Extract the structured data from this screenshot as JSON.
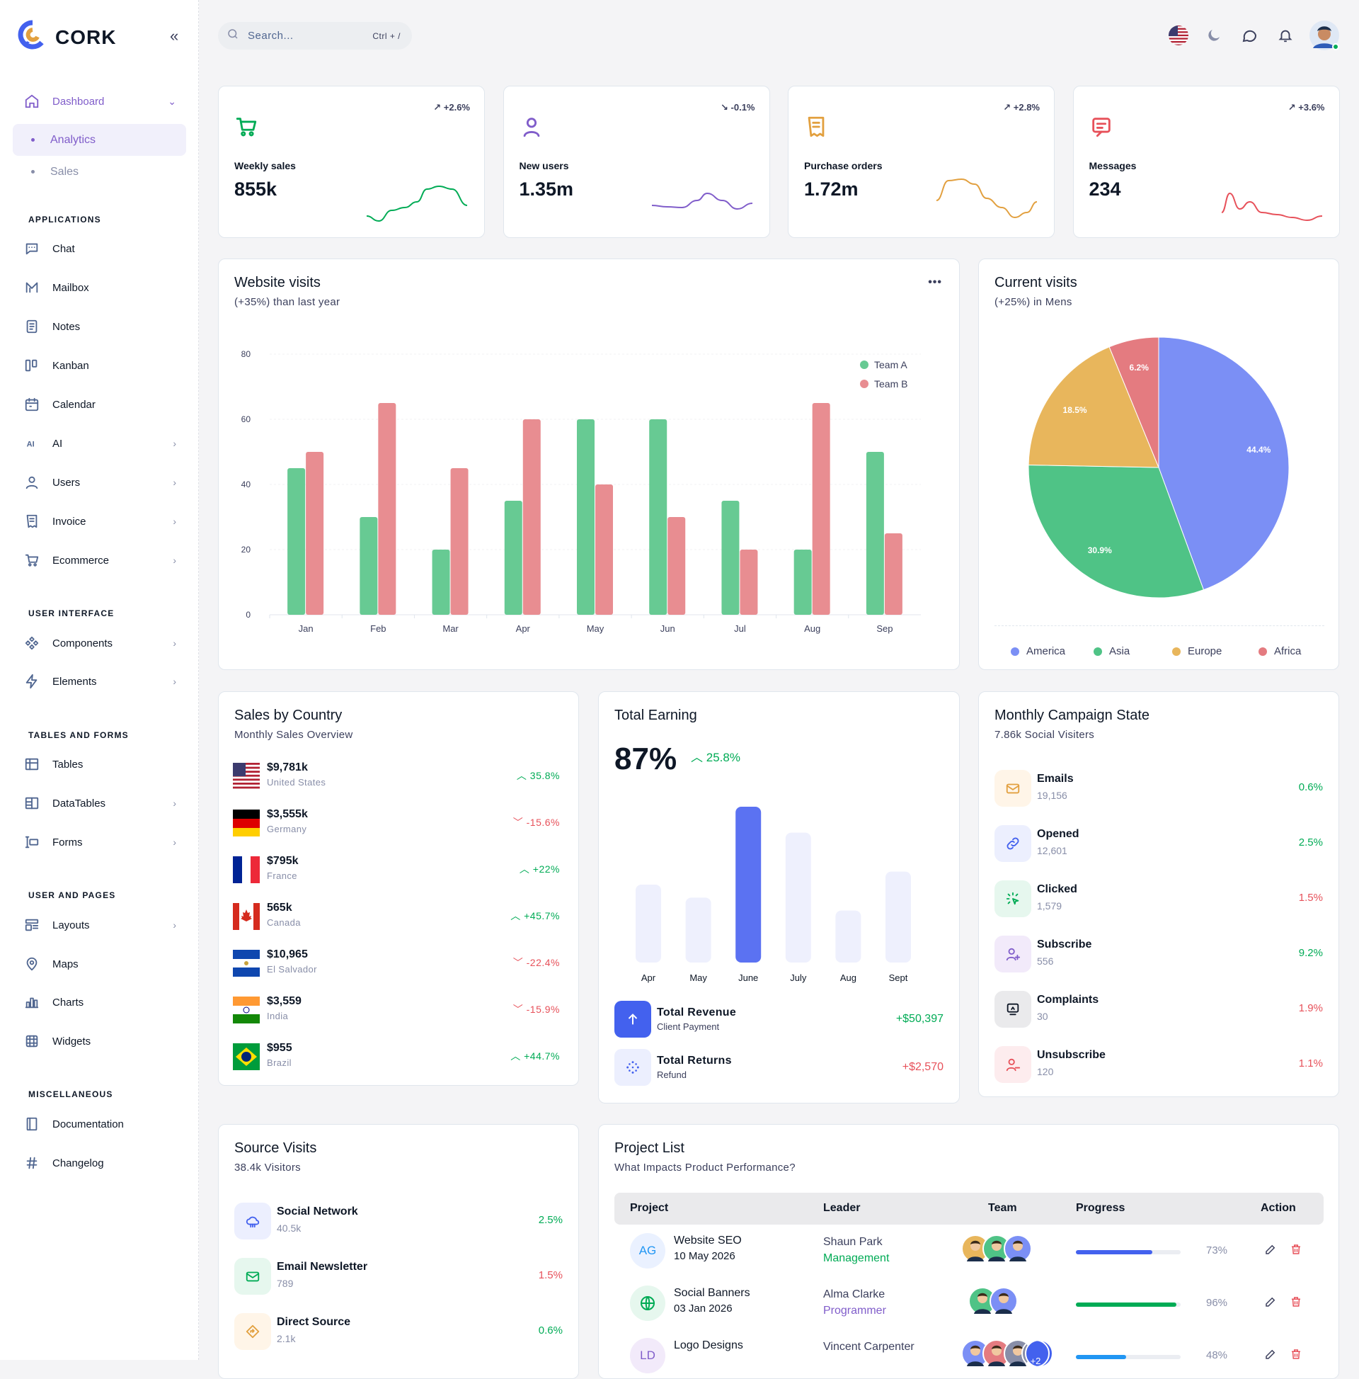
{
  "brand": {
    "name": "CORK"
  },
  "search": {
    "placeholder": "Search...",
    "shortcut": "Ctrl + /"
  },
  "sidebar": {
    "dashboard": "Dashboard",
    "sub_items": [
      "Analytics",
      "Sales"
    ],
    "headings": [
      "APPLICATIONS",
      "USER INTERFACE",
      "TABLES AND FORMS",
      "USER AND PAGES",
      "MISCELLANEOUS"
    ],
    "apps": [
      "Chat",
      "Mailbox",
      "Notes",
      "Kanban",
      "Calendar",
      "AI",
      "Users",
      "Invoice",
      "Ecommerce"
    ],
    "ui": [
      "Components",
      "Elements"
    ],
    "tables": [
      "Tables",
      "DataTables",
      "Forms"
    ],
    "pages": [
      "Layouts",
      "Maps",
      "Charts",
      "Widgets"
    ],
    "misc": [
      "Documentation",
      "Changelog"
    ]
  },
  "stats": [
    {
      "label": "Weekly sales",
      "value": "855k",
      "change": "+2.6%",
      "color": "#00ab55",
      "trend": "up"
    },
    {
      "label": "New users",
      "value": "1.35m",
      "change": "-0.1%",
      "color": "#805dca",
      "trend": "down"
    },
    {
      "label": "Purchase orders",
      "value": "1.72m",
      "change": "+2.8%",
      "color": "#e2a03f",
      "trend": "up"
    },
    {
      "label": "Messages",
      "value": "234",
      "change": "+3.6%",
      "color": "#e7515a",
      "trend": "up"
    }
  ],
  "website_visits": {
    "title": "Website visits",
    "subtitle": "(+35%) than last year",
    "more": "•••"
  },
  "current_visits": {
    "title": "Current visits",
    "subtitle": "(+25%) in Mens"
  },
  "chart_data": [
    {
      "type": "bar",
      "categories": [
        "Jan",
        "Feb",
        "Mar",
        "Apr",
        "May",
        "Jun",
        "Jul",
        "Aug",
        "Sep"
      ],
      "series": [
        {
          "name": "Team A",
          "values": [
            45,
            30,
            20,
            35,
            60,
            60,
            35,
            20,
            50
          ],
          "color": "#67ca93"
        },
        {
          "name": "Team B",
          "values": [
            50,
            65,
            45,
            60,
            40,
            30,
            20,
            65,
            25
          ],
          "color": "#e88d91"
        }
      ],
      "yticks": [
        0,
        20,
        40,
        60,
        80
      ],
      "ylim": [
        0,
        80
      ],
      "legend": "top-right"
    },
    {
      "type": "pie",
      "labels": [
        "America",
        "Asia",
        "Europe",
        "Africa"
      ],
      "values": [
        44.4,
        30.9,
        18.5,
        6.2
      ],
      "value_labels": [
        "44.4%",
        "30.9%",
        "18.5%",
        "6.2%"
      ],
      "colors": [
        "#7b8ff5",
        "#4fc386",
        "#e8b65c",
        "#e47b80"
      ],
      "legend": "bottom"
    },
    {
      "type": "bar",
      "categories": [
        "Apr",
        "May",
        "June",
        "July",
        "Aug",
        "Sept"
      ],
      "values": [
        60,
        50,
        120,
        100,
        40,
        70
      ],
      "highlight": "June"
    }
  ],
  "sales_by_country": {
    "title": "Sales by Country",
    "subtitle": "Monthly Sales Overview",
    "rows": [
      {
        "value": "$9,781k",
        "country": "United States",
        "change": "35.8%",
        "trend": "up",
        "flag": "us"
      },
      {
        "value": "$3,555k",
        "country": "Germany",
        "change": "-15.6%",
        "trend": "down",
        "flag": "de"
      },
      {
        "value": "$795k",
        "country": "France",
        "change": "+22%",
        "trend": "up",
        "flag": "fr"
      },
      {
        "value": "565k",
        "country": "Canada",
        "change": "+45.7%",
        "trend": "up",
        "flag": "ca"
      },
      {
        "value": "$10,965",
        "country": "El Salvador",
        "change": "-22.4%",
        "trend": "down",
        "flag": "sv"
      },
      {
        "value": "$3,559",
        "country": "India",
        "change": "-15.9%",
        "trend": "down",
        "flag": "in"
      },
      {
        "value": "$955",
        "country": "Brazil",
        "change": "+44.7%",
        "trend": "up",
        "flag": "br"
      }
    ]
  },
  "total_earning": {
    "title": "Total Earning",
    "percent": "87%",
    "change": "25.8%",
    "rows": [
      {
        "title": "Total Revenue",
        "sub": "Client Payment",
        "value": "+$50,397"
      },
      {
        "title": "Total Returns",
        "sub": "Refund",
        "value": "+$2,570"
      }
    ]
  },
  "campaign": {
    "title": "Monthly Campaign State",
    "subtitle": "7.86k Social Visiters",
    "rows": [
      {
        "name": "Emails",
        "count": "19,156",
        "pct": "0.6%",
        "trend": "up",
        "icon": "mail-icon",
        "bg": "#fff5e8",
        "fg": "#e2a03f"
      },
      {
        "name": "Opened",
        "count": "12,601",
        "pct": "2.5%",
        "trend": "up",
        "icon": "link-icon",
        "bg": "#eceffe",
        "fg": "#4361ee"
      },
      {
        "name": "Clicked",
        "count": "1,579",
        "pct": "1.5%",
        "trend": "down",
        "icon": "click-icon",
        "bg": "#e6f7ee",
        "fg": "#00ab55"
      },
      {
        "name": "Subscribe",
        "count": "556",
        "pct": "9.2%",
        "trend": "up",
        "icon": "user-plus-icon",
        "bg": "#f2eafa",
        "fg": "#805dca"
      },
      {
        "name": "Complaints",
        "count": "30",
        "pct": "1.9%",
        "trend": "down",
        "icon": "message-icon",
        "bg": "#eaeaec",
        "fg": "#0e1726"
      },
      {
        "name": "Unsubscribe",
        "count": "120",
        "pct": "1.1%",
        "trend": "down",
        "icon": "user-minus-icon",
        "bg": "#fdecee",
        "fg": "#e7515a"
      }
    ]
  },
  "source_visits": {
    "title": "Source Visits",
    "subtitle": "38.4k Visitors",
    "rows": [
      {
        "name": "Social Network",
        "count": "40.5k",
        "pct": "2.5%",
        "trend": "up",
        "icon": "cloud-icon",
        "bg": "#eceffe",
        "fg": "#4361ee"
      },
      {
        "name": "Email Newsletter",
        "count": "789",
        "pct": "1.5%",
        "trend": "down",
        "icon": "mail-icon",
        "bg": "#e6f7ee",
        "fg": "#00ab55"
      },
      {
        "name": "Direct Source",
        "count": "2.1k",
        "pct": "0.6%",
        "trend": "up",
        "icon": "direction-icon",
        "bg": "#fff5e8",
        "fg": "#e2a03f"
      }
    ]
  },
  "project_list": {
    "title": "Project List",
    "subtitle": "What Impacts Product Performance?",
    "headers": [
      "Project",
      "Leader",
      "Team",
      "Progress",
      "Action"
    ],
    "rows": [
      {
        "initials": "AG",
        "name": "Website SEO",
        "date": "10 May 2026",
        "leader": "Shaun Park",
        "role": "Management",
        "role_color": "#00ab55",
        "progress": 73,
        "progress_label": "73%",
        "bar_color": "#4361ee"
      },
      {
        "initials": "",
        "name": "Social Banners",
        "date": "03 Jan 2026",
        "leader": "Alma Clarke",
        "role": "Programmer",
        "role_color": "#805dca",
        "progress": 96,
        "progress_label": "96%",
        "bar_color": "#00ab55"
      },
      {
        "initials": "LD",
        "name": "Logo Designs",
        "date": "",
        "leader": "Vincent Carpenter",
        "role": "",
        "role_color": "#888ea8",
        "progress": 48,
        "progress_label": "48%",
        "bar_color": "#2196f3",
        "team_extra": "+2"
      }
    ]
  }
}
